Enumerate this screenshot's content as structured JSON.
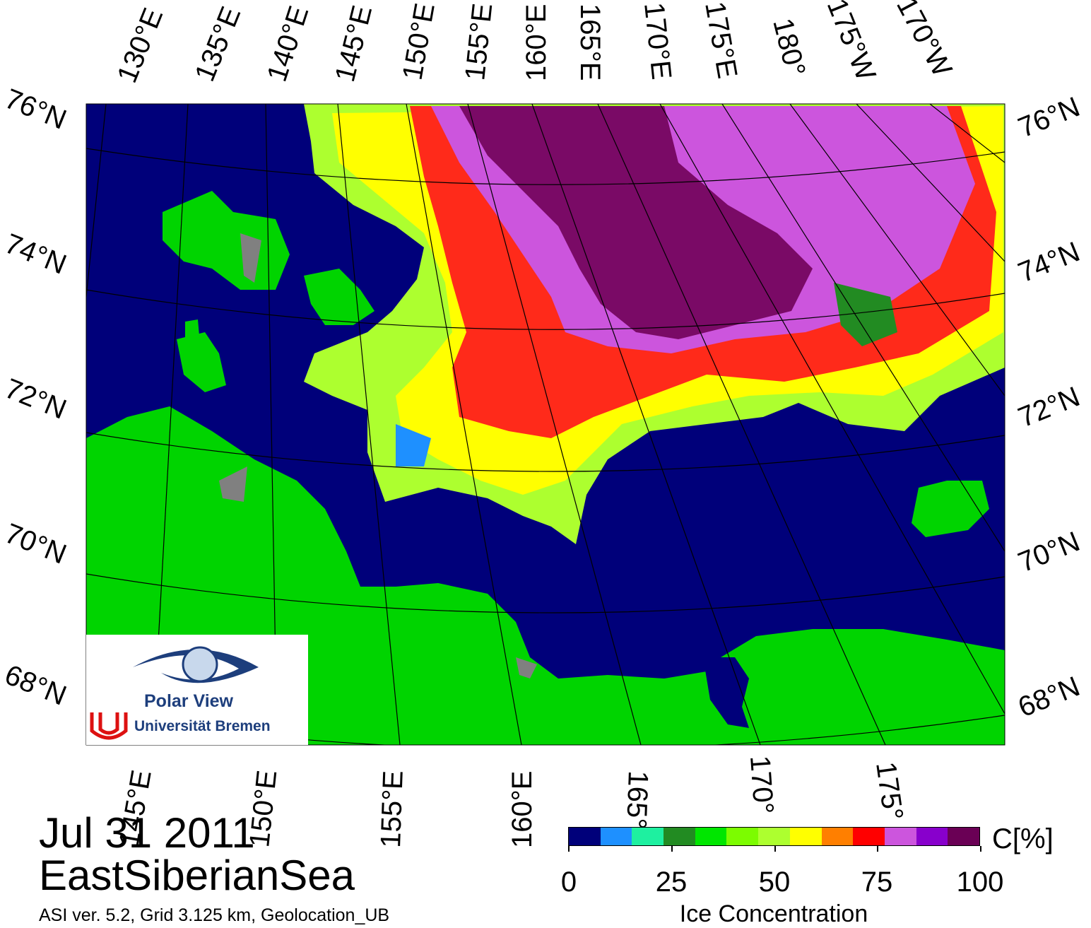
{
  "map": {
    "date": "Jul 31 2011",
    "region": "EastSiberianSea",
    "info": "ASI ver. 5.2,  Grid 3.125 km, Geolocation_UB",
    "top_lon_labels": [
      "130°E",
      "135°E",
      "140°E",
      "145°E",
      "150°E",
      "155°E",
      "160°E",
      "165°E",
      "170°E",
      "175°E",
      "180°",
      "175°W",
      "170°W"
    ],
    "bottom_lon_labels": [
      "145°E",
      "150°E",
      "155°E",
      "160°E",
      "165°",
      "170°",
      "175°"
    ],
    "left_lat_labels": [
      "76°N",
      "74°N",
      "72°N",
      "70°N",
      "68°N"
    ],
    "right_lat_labels": [
      "76°N",
      "74°N",
      "72°N",
      "70°N",
      "68°N"
    ],
    "colors": {
      "ocean": "#00007a",
      "land": "#00d400",
      "land_mask": "#808080"
    }
  },
  "colorbar": {
    "title": "Ice Concentration",
    "unit": "C[%]",
    "tick_labels": [
      "0",
      "25",
      "50",
      "75",
      "100"
    ],
    "colors": [
      "#00007a",
      "#1e90ff",
      "#1ef0a0",
      "#228b22",
      "#00e600",
      "#7cfc00",
      "#adff2f",
      "#ffff00",
      "#ff7f00",
      "#ff0000",
      "#cc55dd",
      "#8800cc",
      "#6a0055"
    ]
  },
  "logo": {
    "name": "Polar View",
    "institution": "Universität Bremen"
  }
}
